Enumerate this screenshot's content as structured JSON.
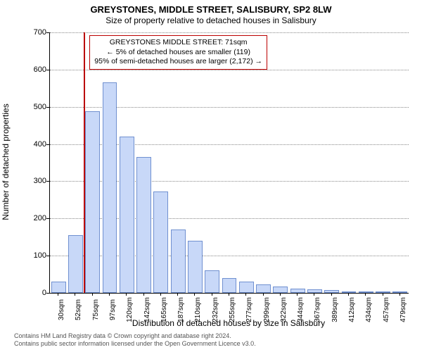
{
  "chart": {
    "type": "histogram",
    "title_main": "GREYSTONES, MIDDLE STREET, SALISBURY, SP2 8LW",
    "title_sub": "Size of property relative to detached houses in Salisbury",
    "title_main_fontsize": 13,
    "title_sub_fontsize": 12,
    "ylabel": "Number of detached properties",
    "xlabel": "Distribution of detached houses by size in Salisbury",
    "label_fontsize": 12,
    "tick_fontsize": 11,
    "background_color": "#ffffff",
    "grid_color": "#888888",
    "axis_color": "#000000",
    "bar_fill": "#c8d8f8",
    "bar_border": "#7090d0",
    "marker_color": "#bb0000",
    "ylim": [
      0,
      700
    ],
    "ytick_step": 100,
    "xtick_labels": [
      "30sqm",
      "52sqm",
      "75sqm",
      "97sqm",
      "120sqm",
      "142sqm",
      "165sqm",
      "187sqm",
      "210sqm",
      "232sqm",
      "255sqm",
      "277sqm",
      "299sqm",
      "322sqm",
      "344sqm",
      "367sqm",
      "389sqm",
      "412sqm",
      "434sqm",
      "457sqm",
      "479sqm"
    ],
    "values": [
      30,
      155,
      488,
      565,
      420,
      365,
      272,
      170,
      140,
      60,
      40,
      30,
      22,
      18,
      12,
      10,
      8,
      4,
      3,
      2,
      1
    ],
    "marker_index": 2,
    "annotation": {
      "line1": "GREYSTONES MIDDLE STREET: 71sqm",
      "line2": "← 5% of detached houses are smaller (119)",
      "line3": "95% of semi-detached houses are larger (2,172) →",
      "border_color": "#bb0000",
      "fontsize": 10.5
    }
  },
  "attribution": {
    "line1": "Contains HM Land Registry data © Crown copyright and database right 2024.",
    "line2": "Contains public sector information licensed under the Open Government Licence v3.0."
  }
}
